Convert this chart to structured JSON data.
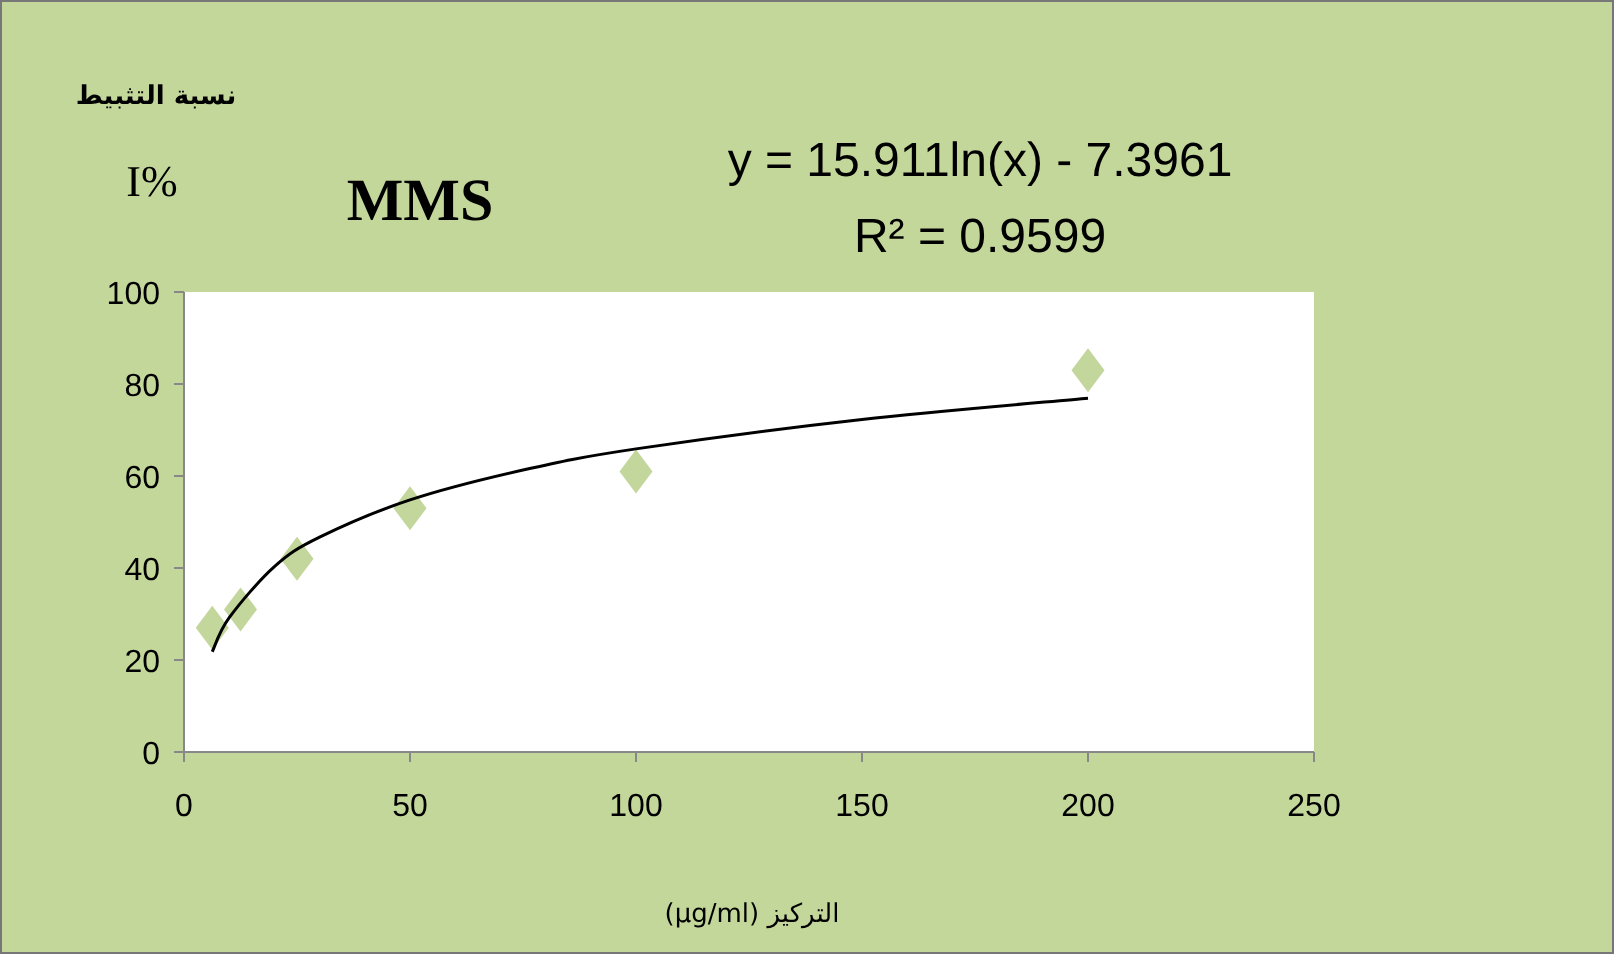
{
  "chart_data": {
    "type": "scatter",
    "title": "MMS",
    "ylabel": "I%",
    "subtitle": "نسبة التثبيط",
    "xlabel": "التركيز (µg/ml)",
    "annotations": [
      "y = 15.911ln(x) - 7.3961",
      "R² = 0.9599"
    ],
    "series": [
      {
        "color": "#c3d69b",
        "marker": "diamond",
        "x": [
          6.25,
          12.5,
          25,
          50,
          100,
          200
        ],
        "values": [
          27,
          31,
          42,
          53,
          61,
          83
        ]
      },
      {
        "type": "line",
        "color": "#000000",
        "x": [
          6.25,
          10,
          20,
          30,
          50,
          75,
          100,
          150,
          200
        ],
        "values": [
          21.8,
          29.2,
          40.3,
          46.7,
          54.8,
          61.3,
          65.9,
          72.3,
          76.9
        ]
      }
    ],
    "xlim": [
      0,
      250
    ],
    "xticks": [
      0,
      50,
      100,
      150,
      200,
      250
    ],
    "ylim": [
      0,
      100
    ],
    "yticks": [
      0,
      20,
      40,
      60,
      80,
      100
    ],
    "grid": false
  }
}
